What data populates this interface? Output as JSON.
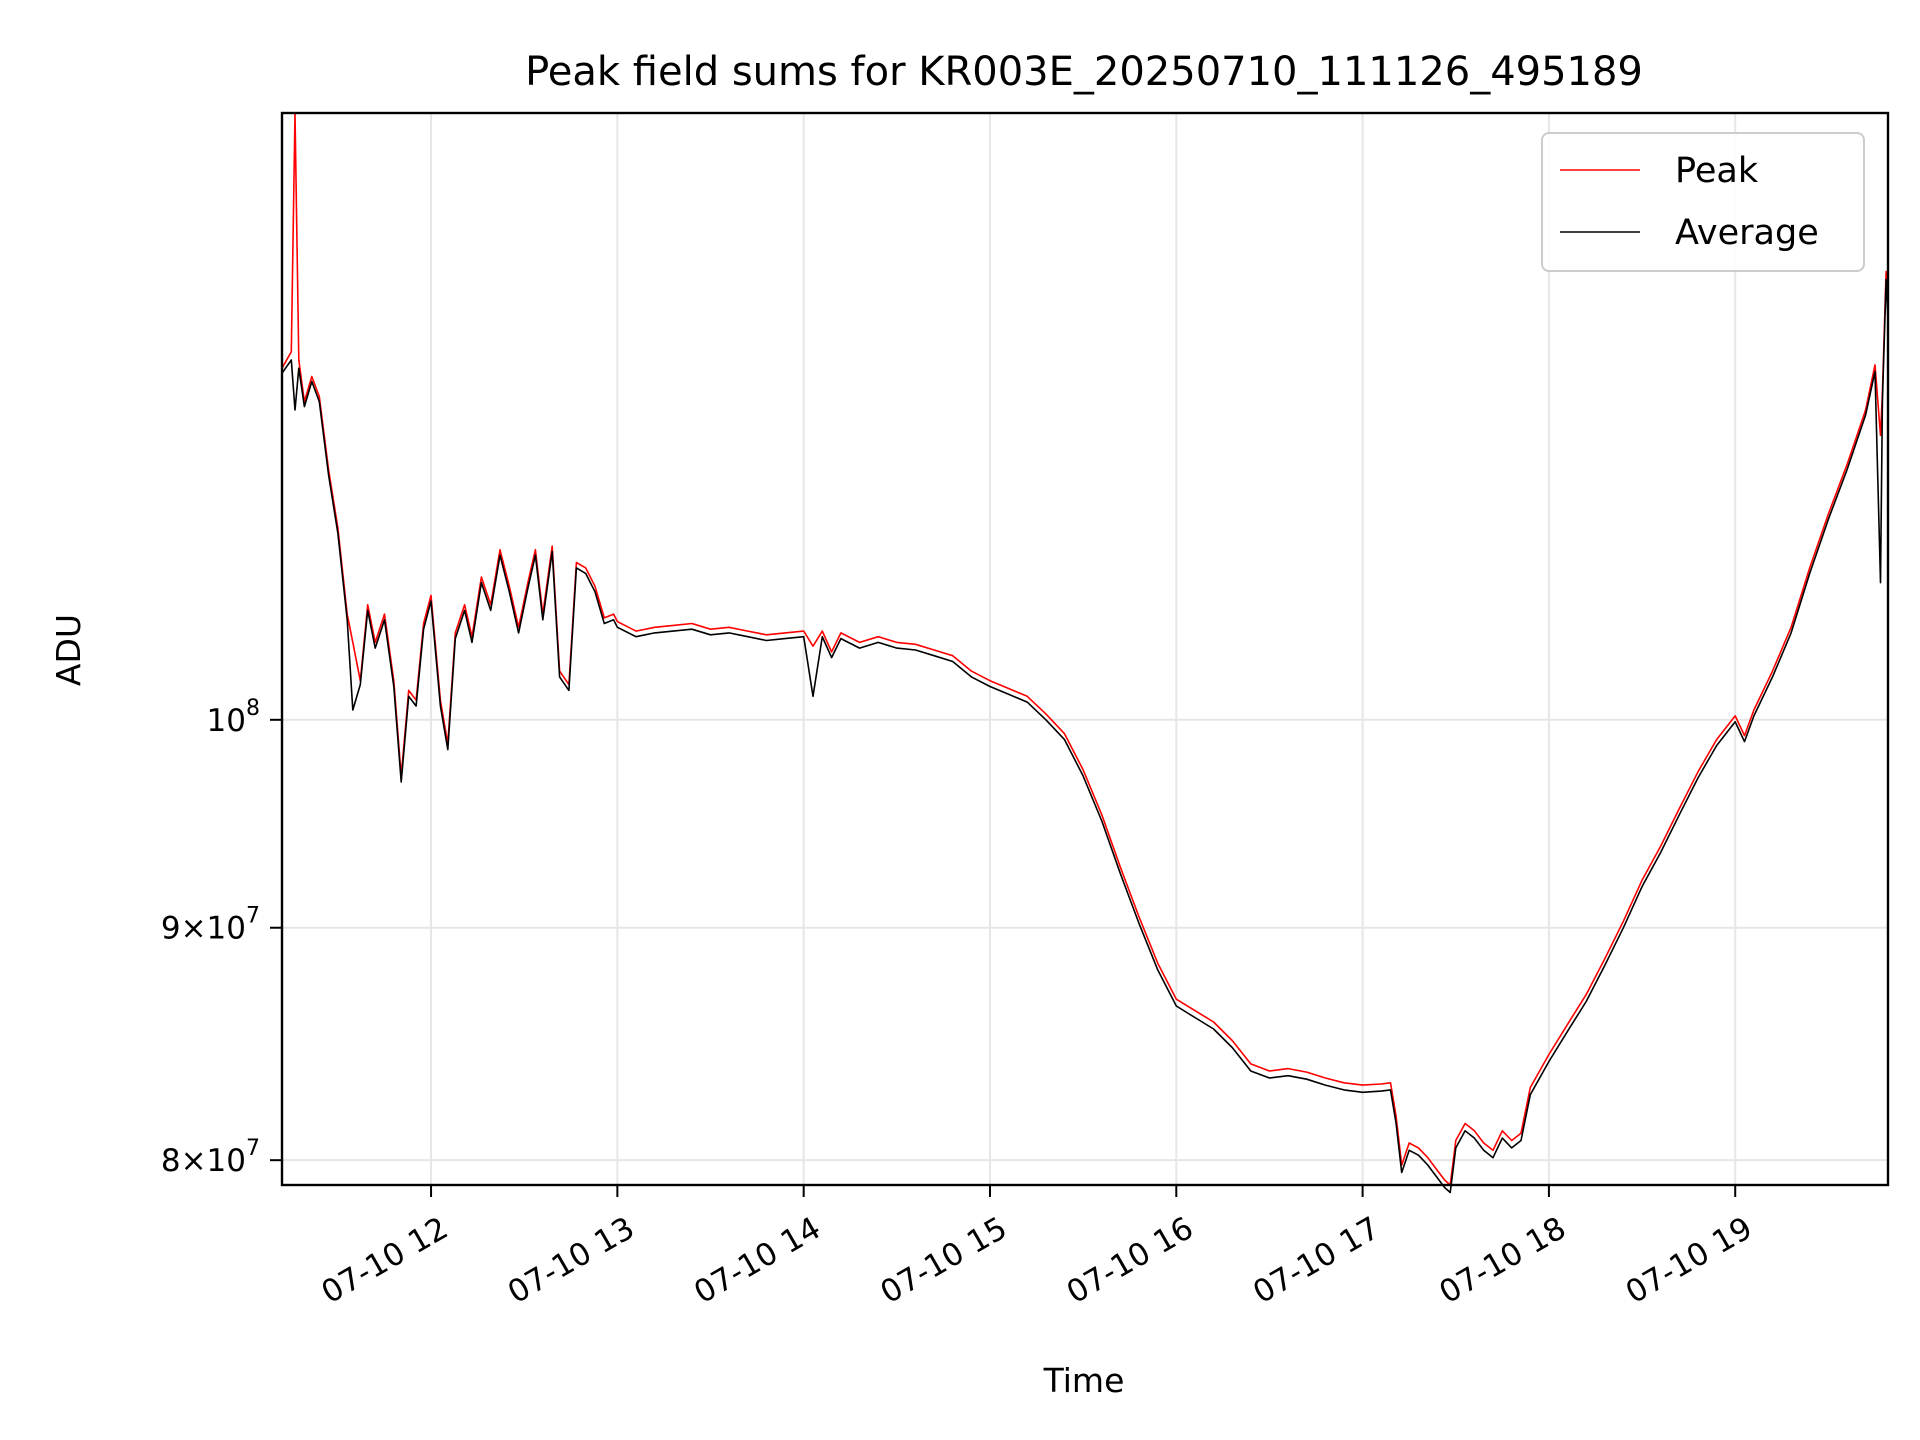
{
  "chart_data": {
    "type": "line",
    "title": "Peak field sums for KR003E_20250710_111126_495189",
    "xlabel": "Time",
    "ylabel": "ADU",
    "yscale": "log",
    "grid": true,
    "legend_position": "top-right",
    "xlim": [
      11.2,
      19.82
    ],
    "ylim": [
      79000000,
      136000000
    ],
    "x_ticks": [
      {
        "value": 12,
        "label": "07-10 12"
      },
      {
        "value": 13,
        "label": "07-10 13"
      },
      {
        "value": 14,
        "label": "07-10 14"
      },
      {
        "value": 15,
        "label": "07-10 15"
      },
      {
        "value": 16,
        "label": "07-10 16"
      },
      {
        "value": 17,
        "label": "07-10 17"
      },
      {
        "value": 18,
        "label": "07-10 18"
      },
      {
        "value": 19,
        "label": "07-10 19"
      }
    ],
    "y_ticks": [
      {
        "value": 80000000,
        "base": "8×10",
        "exp": "7"
      },
      {
        "value": 90000000,
        "base": "9×10",
        "exp": "7"
      },
      {
        "value": 100000000,
        "base": "10",
        "exp": "8"
      }
    ],
    "series": [
      {
        "name": "Peak",
        "color": "#ff0000",
        "points": [
          [
            11.2,
            119500000
          ],
          [
            11.25,
            120500000
          ],
          [
            11.27,
            136000000
          ],
          [
            11.29,
            120000000
          ],
          [
            11.32,
            117500000
          ],
          [
            11.36,
            119000000
          ],
          [
            11.4,
            117800000
          ],
          [
            11.45,
            113500000
          ],
          [
            11.5,
            110200000
          ],
          [
            11.55,
            105500000
          ],
          [
            11.58,
            104000000
          ],
          [
            11.62,
            102000000
          ],
          [
            11.66,
            106000000
          ],
          [
            11.7,
            104000000
          ],
          [
            11.75,
            105500000
          ],
          [
            11.8,
            102000000
          ],
          [
            11.84,
            97200000
          ],
          [
            11.88,
            101500000
          ],
          [
            11.92,
            101000000
          ],
          [
            11.96,
            105000000
          ],
          [
            12.0,
            106500000
          ],
          [
            12.05,
            101000000
          ],
          [
            12.09,
            98800000
          ],
          [
            12.13,
            104500000
          ],
          [
            12.18,
            106000000
          ],
          [
            12.22,
            104300000
          ],
          [
            12.27,
            107500000
          ],
          [
            12.32,
            106000000
          ],
          [
            12.37,
            109000000
          ],
          [
            12.42,
            107000000
          ],
          [
            12.47,
            104800000
          ],
          [
            12.52,
            107200000
          ],
          [
            12.56,
            109000000
          ],
          [
            12.6,
            105500000
          ],
          [
            12.65,
            109200000
          ],
          [
            12.69,
            102500000
          ],
          [
            12.74,
            101800000
          ],
          [
            12.78,
            108300000
          ],
          [
            12.83,
            108000000
          ],
          [
            12.88,
            107000000
          ],
          [
            12.93,
            105300000
          ],
          [
            12.98,
            105500000
          ],
          [
            13.0,
            105100000
          ],
          [
            13.1,
            104600000
          ],
          [
            13.2,
            104800000
          ],
          [
            13.3,
            104900000
          ],
          [
            13.4,
            105000000
          ],
          [
            13.5,
            104700000
          ],
          [
            13.6,
            104800000
          ],
          [
            13.7,
            104600000
          ],
          [
            13.8,
            104400000
          ],
          [
            13.9,
            104500000
          ],
          [
            14.0,
            104600000
          ],
          [
            14.05,
            103800000
          ],
          [
            14.1,
            104600000
          ],
          [
            14.15,
            103500000
          ],
          [
            14.2,
            104500000
          ],
          [
            14.3,
            104000000
          ],
          [
            14.4,
            104300000
          ],
          [
            14.5,
            104000000
          ],
          [
            14.6,
            103900000
          ],
          [
            14.7,
            103600000
          ],
          [
            14.8,
            103300000
          ],
          [
            14.9,
            102500000
          ],
          [
            15.0,
            102000000
          ],
          [
            15.1,
            101600000
          ],
          [
            15.2,
            101200000
          ],
          [
            15.3,
            100300000
          ],
          [
            15.4,
            99300000
          ],
          [
            15.5,
            97500000
          ],
          [
            15.6,
            95300000
          ],
          [
            15.7,
            92800000
          ],
          [
            15.8,
            90500000
          ],
          [
            15.9,
            88400000
          ],
          [
            16.0,
            86800000
          ],
          [
            16.1,
            86300000
          ],
          [
            16.2,
            85800000
          ],
          [
            16.3,
            85000000
          ],
          [
            16.4,
            84000000
          ],
          [
            16.5,
            83700000
          ],
          [
            16.6,
            83800000
          ],
          [
            16.7,
            83650000
          ],
          [
            16.8,
            83400000
          ],
          [
            16.9,
            83200000
          ],
          [
            17.0,
            83100000
          ],
          [
            17.1,
            83150000
          ],
          [
            17.15,
            83200000
          ],
          [
            17.18,
            81800000
          ],
          [
            17.21,
            79800000
          ],
          [
            17.25,
            80700000
          ],
          [
            17.3,
            80500000
          ],
          [
            17.35,
            80100000
          ],
          [
            17.4,
            79600000
          ],
          [
            17.44,
            79200000
          ],
          [
            17.47,
            79000000
          ],
          [
            17.5,
            80800000
          ],
          [
            17.55,
            81500000
          ],
          [
            17.6,
            81200000
          ],
          [
            17.65,
            80700000
          ],
          [
            17.7,
            80400000
          ],
          [
            17.75,
            81200000
          ],
          [
            17.8,
            80800000
          ],
          [
            17.85,
            81100000
          ],
          [
            17.9,
            83000000
          ],
          [
            18.0,
            84400000
          ],
          [
            18.1,
            85700000
          ],
          [
            18.2,
            87000000
          ],
          [
            18.3,
            88600000
          ],
          [
            18.4,
            90300000
          ],
          [
            18.5,
            92200000
          ],
          [
            18.6,
            93800000
          ],
          [
            18.7,
            95600000
          ],
          [
            18.8,
            97400000
          ],
          [
            18.9,
            99000000
          ],
          [
            19.0,
            100200000
          ],
          [
            19.05,
            99200000
          ],
          [
            19.1,
            100500000
          ],
          [
            19.2,
            102500000
          ],
          [
            19.3,
            104800000
          ],
          [
            19.4,
            108000000
          ],
          [
            19.5,
            111000000
          ],
          [
            19.6,
            113800000
          ],
          [
            19.7,
            117000000
          ],
          [
            19.75,
            119700000
          ],
          [
            19.78,
            115500000
          ],
          [
            19.79,
            118000000
          ],
          [
            19.81,
            125500000
          ],
          [
            19.82,
            123000000
          ]
        ]
      },
      {
        "name": "Average",
        "color": "#000000",
        "points": [
          [
            11.2,
            119200000
          ],
          [
            11.25,
            120000000
          ],
          [
            11.27,
            117000000
          ],
          [
            11.29,
            119500000
          ],
          [
            11.32,
            117200000
          ],
          [
            11.36,
            118700000
          ],
          [
            11.4,
            117500000
          ],
          [
            11.45,
            113200000
          ],
          [
            11.5,
            109900000
          ],
          [
            11.55,
            105200000
          ],
          [
            11.58,
            100500000
          ],
          [
            11.62,
            101800000
          ],
          [
            11.66,
            105700000
          ],
          [
            11.7,
            103700000
          ],
          [
            11.75,
            105200000
          ],
          [
            11.8,
            101700000
          ],
          [
            11.84,
            96900000
          ],
          [
            11.88,
            101200000
          ],
          [
            11.92,
            100700000
          ],
          [
            11.96,
            104700000
          ],
          [
            12.0,
            106200000
          ],
          [
            12.05,
            100700000
          ],
          [
            12.09,
            98500000
          ],
          [
            12.13,
            104200000
          ],
          [
            12.18,
            105700000
          ],
          [
            12.22,
            104000000
          ],
          [
            12.27,
            107200000
          ],
          [
            12.32,
            105700000
          ],
          [
            12.37,
            108700000
          ],
          [
            12.42,
            106700000
          ],
          [
            12.47,
            104500000
          ],
          [
            12.52,
            106900000
          ],
          [
            12.56,
            108700000
          ],
          [
            12.6,
            105200000
          ],
          [
            12.65,
            108900000
          ],
          [
            12.69,
            102200000
          ],
          [
            12.74,
            101500000
          ],
          [
            12.78,
            108000000
          ],
          [
            12.83,
            107700000
          ],
          [
            12.88,
            106700000
          ],
          [
            12.93,
            105000000
          ],
          [
            12.98,
            105200000
          ],
          [
            13.0,
            104800000
          ],
          [
            13.1,
            104300000
          ],
          [
            13.2,
            104500000
          ],
          [
            13.3,
            104600000
          ],
          [
            13.4,
            104700000
          ],
          [
            13.5,
            104400000
          ],
          [
            13.6,
            104500000
          ],
          [
            13.7,
            104300000
          ],
          [
            13.8,
            104100000
          ],
          [
            13.9,
            104200000
          ],
          [
            14.0,
            104300000
          ],
          [
            14.05,
            101200000
          ],
          [
            14.1,
            104300000
          ],
          [
            14.15,
            103200000
          ],
          [
            14.2,
            104200000
          ],
          [
            14.3,
            103700000
          ],
          [
            14.4,
            104000000
          ],
          [
            14.5,
            103700000
          ],
          [
            14.6,
            103600000
          ],
          [
            14.7,
            103300000
          ],
          [
            14.8,
            103000000
          ],
          [
            14.9,
            102200000
          ],
          [
            15.0,
            101700000
          ],
          [
            15.1,
            101300000
          ],
          [
            15.2,
            100900000
          ],
          [
            15.3,
            100000000
          ],
          [
            15.4,
            99000000
          ],
          [
            15.5,
            97200000
          ],
          [
            15.6,
            95000000
          ],
          [
            15.7,
            92500000
          ],
          [
            15.8,
            90200000
          ],
          [
            15.9,
            88100000
          ],
          [
            16.0,
            86500000
          ],
          [
            16.1,
            86000000
          ],
          [
            16.2,
            85500000
          ],
          [
            16.3,
            84700000
          ],
          [
            16.4,
            83700000
          ],
          [
            16.5,
            83400000
          ],
          [
            16.6,
            83500000
          ],
          [
            16.7,
            83350000
          ],
          [
            16.8,
            83100000
          ],
          [
            16.9,
            82900000
          ],
          [
            17.0,
            82800000
          ],
          [
            17.1,
            82850000
          ],
          [
            17.15,
            82900000
          ],
          [
            17.18,
            81500000
          ],
          [
            17.21,
            79500000
          ],
          [
            17.25,
            80400000
          ],
          [
            17.3,
            80200000
          ],
          [
            17.35,
            79800000
          ],
          [
            17.4,
            79300000
          ],
          [
            17.44,
            78900000
          ],
          [
            17.47,
            78700000
          ],
          [
            17.5,
            80500000
          ],
          [
            17.55,
            81200000
          ],
          [
            17.6,
            80900000
          ],
          [
            17.65,
            80400000
          ],
          [
            17.7,
            80100000
          ],
          [
            17.75,
            80900000
          ],
          [
            17.8,
            80500000
          ],
          [
            17.85,
            80800000
          ],
          [
            17.9,
            82700000
          ],
          [
            18.0,
            84100000
          ],
          [
            18.1,
            85400000
          ],
          [
            18.2,
            86700000
          ],
          [
            18.3,
            88300000
          ],
          [
            18.4,
            90000000
          ],
          [
            18.5,
            91900000
          ],
          [
            18.6,
            93500000
          ],
          [
            18.7,
            95300000
          ],
          [
            18.8,
            97100000
          ],
          [
            18.9,
            98700000
          ],
          [
            19.0,
            99900000
          ],
          [
            19.05,
            98900000
          ],
          [
            19.1,
            100200000
          ],
          [
            19.2,
            102200000
          ],
          [
            19.3,
            104500000
          ],
          [
            19.4,
            107700000
          ],
          [
            19.5,
            110700000
          ],
          [
            19.6,
            113500000
          ],
          [
            19.7,
            116700000
          ],
          [
            19.75,
            119300000
          ],
          [
            19.78,
            107200000
          ],
          [
            19.79,
            117500000
          ],
          [
            19.81,
            125000000
          ],
          [
            19.82,
            122500000
          ]
        ]
      }
    ]
  }
}
